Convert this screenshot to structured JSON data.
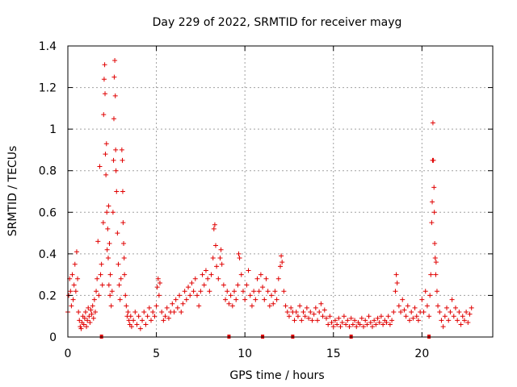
{
  "chart_data": {
    "type": "scatter",
    "title": "Day 229 of 2022, SRMTID for receiver mayg",
    "xlabel": "GPS time / hours",
    "ylabel": "SRMTID / TECUs",
    "xlim": [
      0,
      24
    ],
    "ylim": [
      0,
      1.4
    ],
    "xticks": [
      0,
      5,
      10,
      15,
      20
    ],
    "yticks": [
      0,
      0.2,
      0.4,
      0.6,
      0.8,
      1,
      1.2,
      1.4
    ],
    "xtick_labels": [
      "0",
      "5",
      "10",
      "15",
      "20"
    ],
    "ytick_labels": [
      "0",
      "0.2",
      "0.4",
      "0.6",
      "0.8",
      "1",
      "1.2",
      "1.4"
    ],
    "grid": true,
    "marker": "+",
    "color": "#e00000",
    "series": [
      {
        "name": "SRMTID",
        "points": [
          [
            0.0,
            0.12
          ],
          [
            0.05,
            0.2
          ],
          [
            0.1,
            0.28
          ],
          [
            0.15,
            0.22
          ],
          [
            0.2,
            0.15
          ],
          [
            0.25,
            0.3
          ],
          [
            0.3,
            0.18
          ],
          [
            0.35,
            0.25
          ],
          [
            0.4,
            0.35
          ],
          [
            0.45,
            0.22
          ],
          [
            0.5,
            0.41
          ],
          [
            0.55,
            0.28
          ],
          [
            0.6,
            0.12
          ],
          [
            0.65,
            0.08
          ],
          [
            0.7,
            0.05
          ],
          [
            0.75,
            0.04
          ],
          [
            0.8,
            0.07
          ],
          [
            0.85,
            0.1
          ],
          [
            0.9,
            0.06
          ],
          [
            0.95,
            0.09
          ],
          [
            1.0,
            0.12
          ],
          [
            1.05,
            0.05
          ],
          [
            1.1,
            0.08
          ],
          [
            1.15,
            0.14
          ],
          [
            1.2,
            0.1
          ],
          [
            1.25,
            0.07
          ],
          [
            1.3,
            0.13
          ],
          [
            1.35,
            0.11
          ],
          [
            1.4,
            0.15
          ],
          [
            1.45,
            0.09
          ],
          [
            1.5,
            0.18
          ],
          [
            1.55,
            0.12
          ],
          [
            1.6,
            0.22
          ],
          [
            1.65,
            0.28
          ],
          [
            1.7,
            0.46
          ],
          [
            1.75,
            0.2
          ],
          [
            1.8,
            0.82
          ],
          [
            1.85,
            0.3
          ],
          [
            1.9,
            0.35
          ],
          [
            1.95,
            0.25
          ],
          [
            2.0,
            0.55
          ],
          [
            2.02,
            1.07
          ],
          [
            2.05,
            1.24
          ],
          [
            2.08,
            1.31
          ],
          [
            2.1,
            1.17
          ],
          [
            2.12,
            0.88
          ],
          [
            2.15,
            0.78
          ],
          [
            2.18,
            0.93
          ],
          [
            2.2,
            0.6
          ],
          [
            2.22,
            0.42
          ],
          [
            2.25,
            0.52
          ],
          [
            2.28,
            0.38
          ],
          [
            2.3,
            0.63
          ],
          [
            2.32,
            0.25
          ],
          [
            2.35,
            0.45
          ],
          [
            2.38,
            0.2
          ],
          [
            2.4,
            0.3
          ],
          [
            2.45,
            0.15
          ],
          [
            2.5,
            0.22
          ],
          [
            2.55,
            0.6
          ],
          [
            2.58,
            0.85
          ],
          [
            2.6,
            1.05
          ],
          [
            2.62,
            1.25
          ],
          [
            2.65,
            1.33
          ],
          [
            2.68,
            1.16
          ],
          [
            2.7,
            0.9
          ],
          [
            2.72,
            0.8
          ],
          [
            2.75,
            0.7
          ],
          [
            2.8,
            0.5
          ],
          [
            2.85,
            0.35
          ],
          [
            2.9,
            0.25
          ],
          [
            2.95,
            0.18
          ],
          [
            3.0,
            0.28
          ],
          [
            3.05,
            0.9
          ],
          [
            3.08,
            0.85
          ],
          [
            3.1,
            0.7
          ],
          [
            3.12,
            0.55
          ],
          [
            3.15,
            0.45
          ],
          [
            3.18,
            0.38
          ],
          [
            3.2,
            0.3
          ],
          [
            3.25,
            0.2
          ],
          [
            3.3,
            0.15
          ],
          [
            3.35,
            0.1
          ],
          [
            3.4,
            0.12
          ],
          [
            3.45,
            0.08
          ],
          [
            3.5,
            0.06
          ],
          [
            3.55,
            0.1
          ],
          [
            3.6,
            0.05
          ],
          [
            3.7,
            0.08
          ],
          [
            3.8,
            0.12
          ],
          [
            3.9,
            0.06
          ],
          [
            4.0,
            0.1
          ],
          [
            4.1,
            0.04
          ],
          [
            4.2,
            0.08
          ],
          [
            4.3,
            0.12
          ],
          [
            4.4,
            0.06
          ],
          [
            4.5,
            0.1
          ],
          [
            4.6,
            0.14
          ],
          [
            4.7,
            0.08
          ],
          [
            4.8,
            0.12
          ],
          [
            4.9,
            0.1
          ],
          [
            5.0,
            0.15
          ],
          [
            5.05,
            0.24
          ],
          [
            5.1,
            0.28
          ],
          [
            5.15,
            0.2
          ],
          [
            5.2,
            0.26
          ],
          [
            5.3,
            0.12
          ],
          [
            5.4,
            0.08
          ],
          [
            5.5,
            0.1
          ],
          [
            5.6,
            0.14
          ],
          [
            5.7,
            0.09
          ],
          [
            5.8,
            0.12
          ],
          [
            5.9,
            0.16
          ],
          [
            6.0,
            0.12
          ],
          [
            6.1,
            0.18
          ],
          [
            6.2,
            0.14
          ],
          [
            6.3,
            0.2
          ],
          [
            6.4,
            0.12
          ],
          [
            6.5,
            0.16
          ],
          [
            6.6,
            0.22
          ],
          [
            6.7,
            0.18
          ],
          [
            6.8,
            0.24
          ],
          [
            6.9,
            0.2
          ],
          [
            7.0,
            0.26
          ],
          [
            7.1,
            0.22
          ],
          [
            7.2,
            0.28
          ],
          [
            7.3,
            0.2
          ],
          [
            7.4,
            0.15
          ],
          [
            7.5,
            0.22
          ],
          [
            7.6,
            0.3
          ],
          [
            7.7,
            0.25
          ],
          [
            7.8,
            0.32
          ],
          [
            7.9,
            0.28
          ],
          [
            8.0,
            0.22
          ],
          [
            8.1,
            0.3
          ],
          [
            8.2,
            0.38
          ],
          [
            8.25,
            0.52
          ],
          [
            8.3,
            0.54
          ],
          [
            8.35,
            0.44
          ],
          [
            8.4,
            0.34
          ],
          [
            8.5,
            0.28
          ],
          [
            8.6,
            0.38
          ],
          [
            8.65,
            0.42
          ],
          [
            8.7,
            0.35
          ],
          [
            8.8,
            0.25
          ],
          [
            8.9,
            0.18
          ],
          [
            9.0,
            0.22
          ],
          [
            9.1,
            0.16
          ],
          [
            9.2,
            0.2
          ],
          [
            9.3,
            0.15
          ],
          [
            9.4,
            0.22
          ],
          [
            9.5,
            0.18
          ],
          [
            9.6,
            0.25
          ],
          [
            9.65,
            0.4
          ],
          [
            9.7,
            0.38
          ],
          [
            9.8,
            0.3
          ],
          [
            9.9,
            0.22
          ],
          [
            10.0,
            0.18
          ],
          [
            10.1,
            0.25
          ],
          [
            10.2,
            0.32
          ],
          [
            10.3,
            0.2
          ],
          [
            10.4,
            0.15
          ],
          [
            10.5,
            0.22
          ],
          [
            10.6,
            0.18
          ],
          [
            10.7,
            0.28
          ],
          [
            10.8,
            0.22
          ],
          [
            10.9,
            0.3
          ],
          [
            11.0,
            0.24
          ],
          [
            11.1,
            0.18
          ],
          [
            11.2,
            0.28
          ],
          [
            11.3,
            0.22
          ],
          [
            11.4,
            0.15
          ],
          [
            11.5,
            0.2
          ],
          [
            11.6,
            0.16
          ],
          [
            11.7,
            0.22
          ],
          [
            11.8,
            0.18
          ],
          [
            11.9,
            0.28
          ],
          [
            12.0,
            0.34
          ],
          [
            12.05,
            0.39
          ],
          [
            12.1,
            0.36
          ],
          [
            12.2,
            0.22
          ],
          [
            12.3,
            0.15
          ],
          [
            12.4,
            0.12
          ],
          [
            12.5,
            0.1
          ],
          [
            12.6,
            0.14
          ],
          [
            12.7,
            0.12
          ],
          [
            12.8,
            0.08
          ],
          [
            12.9,
            0.12
          ],
          [
            13.0,
            0.1
          ],
          [
            13.1,
            0.15
          ],
          [
            13.2,
            0.08
          ],
          [
            13.3,
            0.12
          ],
          [
            13.4,
            0.1
          ],
          [
            13.5,
            0.14
          ],
          [
            13.6,
            0.09
          ],
          [
            13.7,
            0.12
          ],
          [
            13.8,
            0.08
          ],
          [
            13.9,
            0.11
          ],
          [
            14.0,
            0.14
          ],
          [
            14.1,
            0.08
          ],
          [
            14.2,
            0.12
          ],
          [
            14.3,
            0.16
          ],
          [
            14.4,
            0.1
          ],
          [
            14.5,
            0.13
          ],
          [
            14.6,
            0.09
          ],
          [
            14.7,
            0.06
          ],
          [
            14.8,
            0.1
          ],
          [
            14.9,
            0.07
          ],
          [
            15.0,
            0.05
          ],
          [
            15.1,
            0.08
          ],
          [
            15.2,
            0.06
          ],
          [
            15.3,
            0.09
          ],
          [
            15.4,
            0.05
          ],
          [
            15.5,
            0.07
          ],
          [
            15.6,
            0.1
          ],
          [
            15.7,
            0.06
          ],
          [
            15.8,
            0.08
          ],
          [
            15.9,
            0.05
          ],
          [
            16.0,
            0.09
          ],
          [
            16.1,
            0.06
          ],
          [
            16.2,
            0.08
          ],
          [
            16.3,
            0.05
          ],
          [
            16.4,
            0.07
          ],
          [
            16.5,
            0.06
          ],
          [
            16.6,
            0.09
          ],
          [
            16.7,
            0.05
          ],
          [
            16.8,
            0.08
          ],
          [
            16.9,
            0.06
          ],
          [
            17.0,
            0.1
          ],
          [
            17.1,
            0.07
          ],
          [
            17.2,
            0.05
          ],
          [
            17.3,
            0.08
          ],
          [
            17.4,
            0.06
          ],
          [
            17.5,
            0.09
          ],
          [
            17.6,
            0.07
          ],
          [
            17.7,
            0.1
          ],
          [
            17.8,
            0.06
          ],
          [
            17.9,
            0.08
          ],
          [
            18.0,
            0.07
          ],
          [
            18.1,
            0.1
          ],
          [
            18.2,
            0.06
          ],
          [
            18.3,
            0.08
          ],
          [
            18.4,
            0.12
          ],
          [
            18.5,
            0.22
          ],
          [
            18.55,
            0.3
          ],
          [
            18.6,
            0.26
          ],
          [
            18.7,
            0.15
          ],
          [
            18.8,
            0.12
          ],
          [
            18.9,
            0.18
          ],
          [
            19.0,
            0.13
          ],
          [
            19.1,
            0.1
          ],
          [
            19.2,
            0.15
          ],
          [
            19.3,
            0.08
          ],
          [
            19.4,
            0.12
          ],
          [
            19.5,
            0.09
          ],
          [
            19.6,
            0.14
          ],
          [
            19.7,
            0.1
          ],
          [
            19.8,
            0.08
          ],
          [
            19.9,
            0.12
          ],
          [
            20.0,
            0.18
          ],
          [
            20.1,
            0.12
          ],
          [
            20.2,
            0.22
          ],
          [
            20.3,
            0.15
          ],
          [
            20.4,
            0.1
          ],
          [
            20.45,
            0.2
          ],
          [
            20.5,
            0.3
          ],
          [
            20.55,
            0.55
          ],
          [
            20.58,
            0.65
          ],
          [
            20.6,
            0.85
          ],
          [
            20.62,
            1.03
          ],
          [
            20.65,
            0.85
          ],
          [
            20.68,
            0.72
          ],
          [
            20.7,
            0.6
          ],
          [
            20.72,
            0.45
          ],
          [
            20.75,
            0.38
          ],
          [
            20.78,
            0.3
          ],
          [
            20.8,
            0.36
          ],
          [
            20.85,
            0.22
          ],
          [
            20.9,
            0.15
          ],
          [
            21.0,
            0.12
          ],
          [
            21.1,
            0.08
          ],
          [
            21.2,
            0.05
          ],
          [
            21.3,
            0.1
          ],
          [
            21.4,
            0.14
          ],
          [
            21.5,
            0.08
          ],
          [
            21.6,
            0.12
          ],
          [
            21.7,
            0.18
          ],
          [
            21.8,
            0.1
          ],
          [
            21.9,
            0.14
          ],
          [
            22.0,
            0.08
          ],
          [
            22.1,
            0.12
          ],
          [
            22.2,
            0.06
          ],
          [
            22.3,
            0.1
          ],
          [
            22.4,
            0.08
          ],
          [
            22.5,
            0.12
          ],
          [
            22.6,
            0.07
          ],
          [
            22.7,
            0.11
          ],
          [
            22.8,
            0.14
          ]
        ]
      }
    ],
    "gap_markers_x": [
      1.9,
      9.1,
      11.0,
      12.7,
      16.0,
      20.4
    ]
  }
}
